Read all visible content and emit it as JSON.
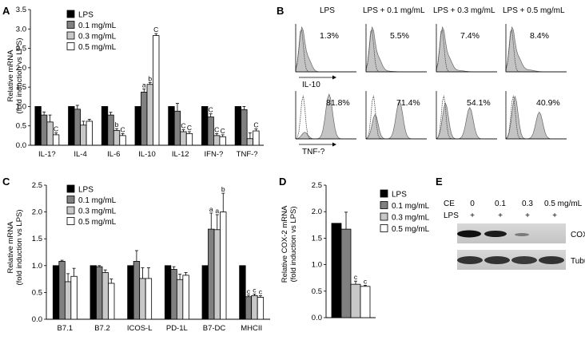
{
  "panels": {
    "A": {
      "letter": "A",
      "ylabel": [
        "Relative mRNA",
        "(fold induction vs LPS)"
      ],
      "ylim": [
        0,
        3.5
      ],
      "yticks": [
        "0.0",
        "0.5",
        "1.0",
        "1.5",
        "2.0",
        "2.5",
        "3.0",
        "3.5"
      ]
    },
    "B": {
      "letter": "B",
      "col_titles": [
        "LPS",
        "LPS + 0.1 mg/mL",
        "LPS + 0.3 mg/mL",
        "LPS + 0.5 mg/mL"
      ],
      "rows": [
        {
          "label": "IL-10",
          "percents": [
            "1.3%",
            "5.5%",
            "7.4%",
            "8.4%"
          ]
        },
        {
          "label": "TNF-?",
          "percents": [
            "81.8%",
            "71.4%",
            "54.1%",
            "40.9%"
          ]
        }
      ]
    },
    "C": {
      "letter": "C",
      "ylabel": [
        "Relative mRNA",
        "(fold induction vs LPS)"
      ],
      "ylim": [
        0,
        2.5
      ],
      "yticks": [
        "0.0",
        "0.5",
        "1.0",
        "1.5",
        "2.0",
        "2.5"
      ]
    },
    "D": {
      "letter": "D",
      "ylabel": [
        "Relative COX-2 mRNA",
        "(fold induction vs LPS)"
      ],
      "ylim": [
        0,
        2.5
      ],
      "yticks": [
        "0.0",
        "0.5",
        "1.0",
        "1.5",
        "2.0",
        "2.5"
      ]
    },
    "E": {
      "letter": "E",
      "row_labels": [
        "CE",
        "LPS"
      ],
      "ce_values": [
        "0",
        "0.1",
        "0.3",
        "0.5 mg/mL"
      ],
      "lps_values": [
        "+",
        "+",
        "+",
        "+"
      ],
      "bands": [
        "COX-2",
        "Tubulin"
      ]
    }
  },
  "legend": [
    "LPS",
    "0.1 mg/mL",
    "0.3 mg/mL",
    "0.5 mg/mL"
  ],
  "colors": {
    "LPS": "#000000",
    "0.1 mg/mL": "#808080",
    "0.3 mg/mL": "#c8c8c8",
    "0.5 mg/mL": "#ffffff"
  },
  "chart_data": [
    {
      "panel": "A",
      "type": "bar",
      "categories": [
        "IL-1?",
        "IL-4",
        "IL-6",
        "IL-10",
        "IL-12",
        "IFN-?",
        "TNF-?"
      ],
      "ylabel": "Relative mRNA (fold induction vs LPS)",
      "ylim": [
        0,
        3.5
      ],
      "series": [
        {
          "name": "LPS",
          "values": [
            1.0,
            1.0,
            1.0,
            1.0,
            1.0,
            1.0,
            1.0
          ],
          "errors": [
            0,
            0,
            0,
            0,
            0,
            0,
            0
          ]
        },
        {
          "name": "0.1 mg/mL",
          "values": [
            0.78,
            0.93,
            0.78,
            1.37,
            0.88,
            0.73,
            0.92
          ],
          "errors": [
            0.08,
            0.1,
            0.07,
            0.08,
            0.2,
            0.08,
            0.08
          ]
        },
        {
          "name": "0.3 mg/mL",
          "values": [
            0.6,
            0.52,
            0.38,
            1.57,
            0.35,
            0.25,
            0.17
          ],
          "errors": [
            0.18,
            0.1,
            0.05,
            0.05,
            0.05,
            0.05,
            0.15
          ]
        },
        {
          "name": "0.5 mg/mL",
          "values": [
            0.27,
            0.62,
            0.25,
            2.83,
            0.3,
            0.22,
            0.37
          ],
          "errors": [
            0.05,
            0.05,
            0.05,
            0.05,
            0.05,
            0.05,
            0.05
          ]
        }
      ],
      "annotations": [
        [
          "",
          "",
          "",
          "C"
        ],
        [
          "",
          "",
          "",
          ""
        ],
        [
          "",
          "",
          "b",
          "C"
        ],
        [
          "",
          "a",
          "b",
          "C"
        ],
        [
          "",
          "",
          "C",
          "C"
        ],
        [
          "",
          "C",
          "C",
          "C"
        ],
        [
          "",
          "",
          "",
          "C"
        ]
      ]
    },
    {
      "panel": "C",
      "type": "bar",
      "categories": [
        "B7.1",
        "B7.2",
        "ICOS-L",
        "PD-1L",
        "B7-DC",
        "MHCII"
      ],
      "ylabel": "Relative mRNA (fold induction vs LPS)",
      "ylim": [
        0,
        2.5
      ],
      "series": [
        {
          "name": "LPS",
          "values": [
            1.0,
            1.0,
            1.0,
            1.0,
            1.0,
            1.0
          ],
          "errors": [
            0,
            0,
            0,
            0,
            0,
            0
          ]
        },
        {
          "name": "0.1 mg/mL",
          "values": [
            1.08,
            0.98,
            1.08,
            0.93,
            1.68,
            0.42
          ],
          "errors": [
            0.02,
            0.02,
            0.2,
            0.05,
            0.3,
            0.03
          ]
        },
        {
          "name": "0.3 mg/mL",
          "values": [
            0.7,
            0.87,
            0.76,
            0.74,
            1.67,
            0.44
          ],
          "errors": [
            0.15,
            0.05,
            0.2,
            0.1,
            0.28,
            0.03
          ]
        },
        {
          "name": "0.5 mg/mL",
          "values": [
            0.8,
            0.67,
            0.76,
            0.82,
            2.0,
            0.41
          ],
          "errors": [
            0.15,
            0.08,
            0.2,
            0.05,
            0.35,
            0.03
          ]
        }
      ],
      "annotations": [
        [
          "",
          "",
          "",
          ""
        ],
        [
          "",
          "",
          "",
          ""
        ],
        [
          "",
          "",
          "",
          ""
        ],
        [
          "",
          "",
          "",
          ""
        ],
        [
          "",
          "a",
          "a",
          "b"
        ],
        [
          "",
          "c",
          "c",
          "c"
        ]
      ]
    },
    {
      "panel": "D",
      "type": "bar",
      "categories": [
        ""
      ],
      "ylabel": "Relative COX-2 mRNA (fold induction vs LPS)",
      "ylim": [
        0,
        2.5
      ],
      "series": [
        {
          "name": "LPS",
          "values": [
            1.78
          ],
          "errors": [
            0
          ]
        },
        {
          "name": "0.1 mg/mL",
          "values": [
            1.67
          ],
          "errors": [
            0.32
          ]
        },
        {
          "name": "0.3 mg/mL",
          "values": [
            0.63
          ],
          "errors": [
            0.06
          ]
        },
        {
          "name": "0.5 mg/mL",
          "values": [
            0.59
          ],
          "errors": [
            0.02
          ]
        }
      ],
      "annotations": [
        [
          "",
          "",
          "c",
          "c"
        ]
      ]
    }
  ]
}
